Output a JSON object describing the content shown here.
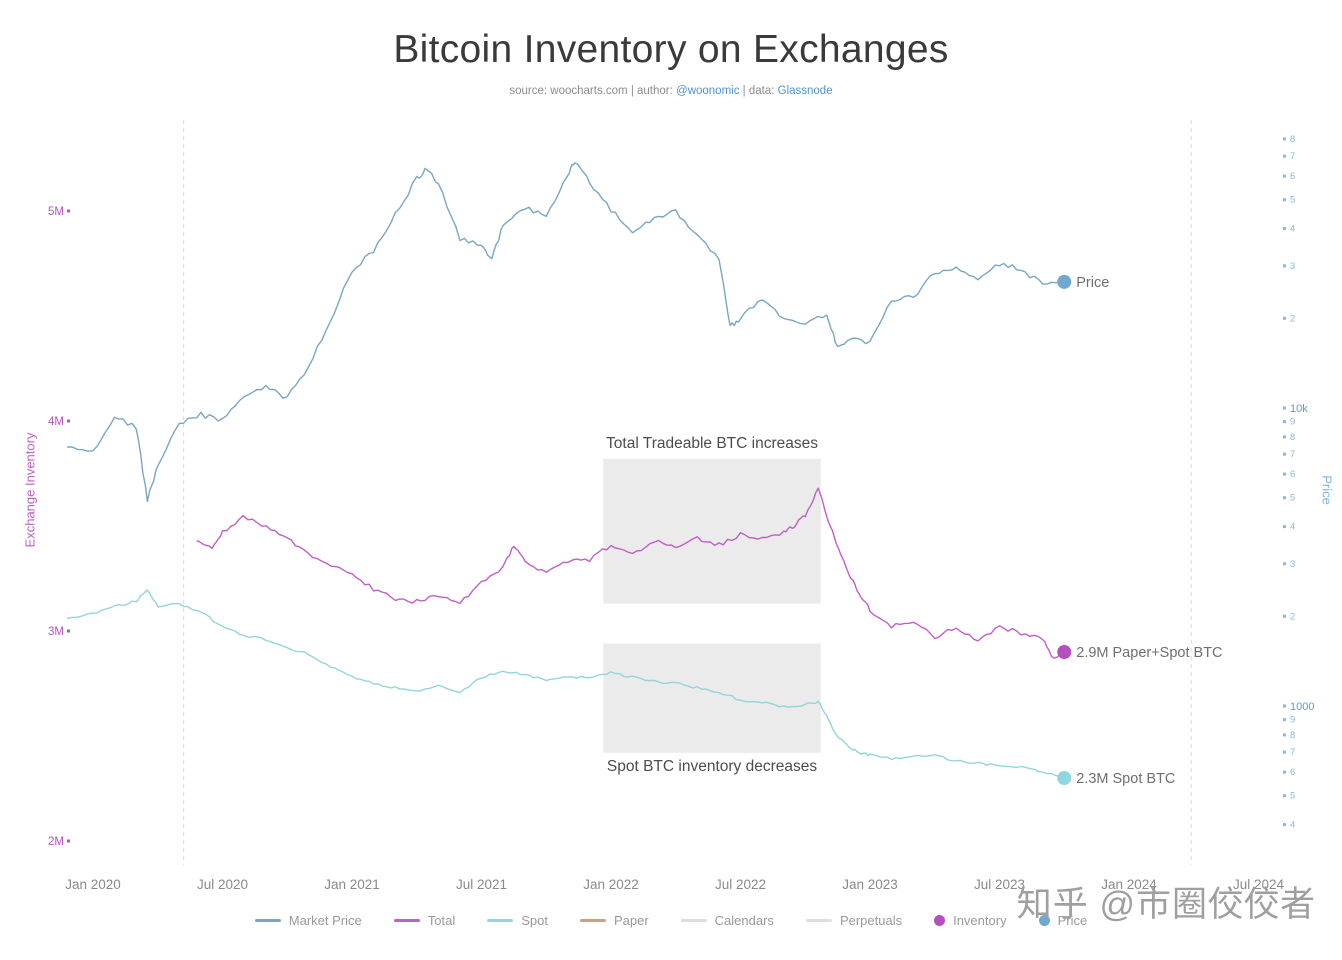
{
  "header": {
    "title": "Bitcoin Inventory on Exchanges",
    "subtitle_prefix": "source: woocharts.com | author: ",
    "author_link": "@woonomic",
    "subtitle_mid": " | data: ",
    "data_link": "Glassnode"
  },
  "watermark": "知乎 @市圈佼佼者",
  "legend": {
    "items": [
      {
        "label": "Market Price",
        "swatch": "line",
        "color": "#7aa6c2"
      },
      {
        "label": "Total",
        "swatch": "line",
        "color": "#c05fc5"
      },
      {
        "label": "Spot",
        "swatch": "line",
        "color": "#93d5dc"
      },
      {
        "label": "Paper",
        "swatch": "line",
        "color": "#c9a183"
      },
      {
        "label": "Calendars",
        "swatch": "line",
        "color": "#dedede"
      },
      {
        "label": "Perpetuals",
        "swatch": "line",
        "color": "#dedede"
      },
      {
        "label": "Inventory",
        "swatch": "dot",
        "color": "#b44fc0"
      },
      {
        "label": "Price",
        "swatch": "dot",
        "color": "#6fa8d0"
      }
    ]
  },
  "chart_data": {
    "type": "line",
    "title": "Bitcoin Inventory on Exchanges",
    "legend_position": "bottom",
    "grid": "off",
    "x_axis": {
      "ticks": [
        {
          "label": "Jan 2020",
          "t": 2020.0
        },
        {
          "label": "Jul 2020",
          "t": 2020.5
        },
        {
          "label": "Jan 2021",
          "t": 2021.0
        },
        {
          "label": "Jul 2021",
          "t": 2021.5
        },
        {
          "label": "Jan 2022",
          "t": 2022.0
        },
        {
          "label": "Jul 2022",
          "t": 2022.5
        },
        {
          "label": "Jan 2023",
          "t": 2023.0
        },
        {
          "label": "Jul 2023",
          "t": 2023.5
        },
        {
          "label": "Jan 2024",
          "t": 2024.0
        },
        {
          "label": "Jul 2024",
          "t": 2024.5
        }
      ],
      "range_t": [
        2019.89,
        2024.62
      ]
    },
    "left_axis": {
      "label": "Exchange Inventory",
      "color": "#c05fc5",
      "units": "BTC",
      "range_millions": [
        1.95,
        5.55
      ],
      "ticks": [
        {
          "label": "5M",
          "value_millions": 5
        },
        {
          "label": "4M",
          "value_millions": 4
        },
        {
          "label": "3M",
          "value_millions": 3
        },
        {
          "label": "2M",
          "value_millions": 2
        }
      ]
    },
    "right_axis": {
      "label": "Price",
      "color": "#86b3da",
      "scale": "log",
      "range_usd": [
        300,
        93000
      ],
      "ticks": [
        {
          "label": "8",
          "value": 80000,
          "major": false
        },
        {
          "label": "7",
          "value": 70000,
          "major": false
        },
        {
          "label": "6",
          "value": 60000,
          "major": false
        },
        {
          "label": "5",
          "value": 50000,
          "major": false
        },
        {
          "label": "4",
          "value": 40000,
          "major": false
        },
        {
          "label": "3",
          "value": 30000,
          "major": false
        },
        {
          "label": "2",
          "value": 20000,
          "major": false
        },
        {
          "label": "10k",
          "value": 10000,
          "major": true
        },
        {
          "label": "9",
          "value": 9000,
          "major": false
        },
        {
          "label": "8",
          "value": 8000,
          "major": false
        },
        {
          "label": "7",
          "value": 7000,
          "major": false
        },
        {
          "label": "6",
          "value": 6000,
          "major": false
        },
        {
          "label": "5",
          "value": 5000,
          "major": false
        },
        {
          "label": "4",
          "value": 4000,
          "major": false
        },
        {
          "label": "3",
          "value": 3000,
          "major": false
        },
        {
          "label": "2",
          "value": 2000,
          "major": false
        },
        {
          "label": "1000",
          "value": 1000,
          "major": true
        },
        {
          "label": "9",
          "value": 900,
          "major": false
        },
        {
          "label": "8",
          "value": 800,
          "major": false
        },
        {
          "label": "7",
          "value": 700,
          "major": false
        },
        {
          "label": "6",
          "value": 600,
          "major": false
        },
        {
          "label": "5",
          "value": 500,
          "major": false
        },
        {
          "label": "4",
          "value": 400,
          "major": false
        }
      ]
    },
    "series": [
      {
        "name": "Market Price",
        "axis": "price",
        "units": "USD",
        "color": "#7aa6c2",
        "points": [
          [
            2019.9,
            7400
          ],
          [
            2020.0,
            7200
          ],
          [
            2020.083,
            9400
          ],
          [
            2020.167,
            8600
          ],
          [
            2020.21,
            4900
          ],
          [
            2020.25,
            6400
          ],
          [
            2020.333,
            8800
          ],
          [
            2020.417,
            9500
          ],
          [
            2020.5,
            9100
          ],
          [
            2020.583,
            11000
          ],
          [
            2020.667,
            11700
          ],
          [
            2020.75,
            10800
          ],
          [
            2020.833,
            13800
          ],
          [
            2020.917,
            19700
          ],
          [
            2021.0,
            29000
          ],
          [
            2021.083,
            33500
          ],
          [
            2021.167,
            45000
          ],
          [
            2021.25,
            58800
          ],
          [
            2021.29,
            63500
          ],
          [
            2021.333,
            57000
          ],
          [
            2021.417,
            37000
          ],
          [
            2021.5,
            35000
          ],
          [
            2021.54,
            31500
          ],
          [
            2021.583,
            41000
          ],
          [
            2021.667,
            47000
          ],
          [
            2021.75,
            43800
          ],
          [
            2021.833,
            61000
          ],
          [
            2021.86,
            67500
          ],
          [
            2021.917,
            57000
          ],
          [
            2022.0,
            46200
          ],
          [
            2022.083,
            38500
          ],
          [
            2022.167,
            43200
          ],
          [
            2022.25,
            45500
          ],
          [
            2022.333,
            37600
          ],
          [
            2022.417,
            31800
          ],
          [
            2022.46,
            18800
          ],
          [
            2022.5,
            19900
          ],
          [
            2022.583,
            23300
          ],
          [
            2022.667,
            20000
          ],
          [
            2022.75,
            19400
          ],
          [
            2022.833,
            20500
          ],
          [
            2022.875,
            16000
          ],
          [
            2022.917,
            17100
          ],
          [
            2023.0,
            16500
          ],
          [
            2023.083,
            23100
          ],
          [
            2023.167,
            23500
          ],
          [
            2023.25,
            28500
          ],
          [
            2023.333,
            29200
          ],
          [
            2023.417,
            27200
          ],
          [
            2023.5,
            30500
          ],
          [
            2023.583,
            29200
          ],
          [
            2023.667,
            26000
          ],
          [
            2023.75,
            26500
          ]
        ]
      },
      {
        "name": "Total",
        "axis": "inventory",
        "units": "M BTC",
        "color": "#c05fc5",
        "points": [
          [
            2020.4,
            3.43
          ],
          [
            2020.46,
            3.4
          ],
          [
            2020.5,
            3.47
          ],
          [
            2020.58,
            3.54
          ],
          [
            2020.67,
            3.5
          ],
          [
            2020.75,
            3.44
          ],
          [
            2020.83,
            3.37
          ],
          [
            2020.92,
            3.31
          ],
          [
            2021.0,
            3.27
          ],
          [
            2021.083,
            3.2
          ],
          [
            2021.167,
            3.15
          ],
          [
            2021.25,
            3.14
          ],
          [
            2021.333,
            3.17
          ],
          [
            2021.417,
            3.13
          ],
          [
            2021.5,
            3.23
          ],
          [
            2021.583,
            3.3
          ],
          [
            2021.625,
            3.41
          ],
          [
            2021.667,
            3.33
          ],
          [
            2021.75,
            3.28
          ],
          [
            2021.833,
            3.33
          ],
          [
            2021.917,
            3.34
          ],
          [
            2022.0,
            3.41
          ],
          [
            2022.083,
            3.36
          ],
          [
            2022.167,
            3.43
          ],
          [
            2022.25,
            3.4
          ],
          [
            2022.333,
            3.44
          ],
          [
            2022.417,
            3.41
          ],
          [
            2022.5,
            3.46
          ],
          [
            2022.583,
            3.44
          ],
          [
            2022.667,
            3.47
          ],
          [
            2022.708,
            3.5
          ],
          [
            2022.75,
            3.55
          ],
          [
            2022.8,
            3.68
          ],
          [
            2022.833,
            3.55
          ],
          [
            2022.87,
            3.42
          ],
          [
            2022.917,
            3.28
          ],
          [
            2022.958,
            3.18
          ],
          [
            2023.0,
            3.1
          ],
          [
            2023.083,
            3.02
          ],
          [
            2023.167,
            3.05
          ],
          [
            2023.25,
            2.97
          ],
          [
            2023.333,
            3.02
          ],
          [
            2023.417,
            2.95
          ],
          [
            2023.5,
            3.02
          ],
          [
            2023.583,
            2.99
          ],
          [
            2023.667,
            2.96
          ],
          [
            2023.708,
            2.87
          ],
          [
            2023.75,
            2.9
          ]
        ]
      },
      {
        "name": "Spot",
        "axis": "inventory",
        "units": "M BTC",
        "color": "#93d5dc",
        "points": [
          [
            2019.9,
            3.06
          ],
          [
            2020.0,
            3.08
          ],
          [
            2020.083,
            3.12
          ],
          [
            2020.167,
            3.14
          ],
          [
            2020.21,
            3.2
          ],
          [
            2020.25,
            3.12
          ],
          [
            2020.333,
            3.13
          ],
          [
            2020.417,
            3.09
          ],
          [
            2020.5,
            3.02
          ],
          [
            2020.583,
            2.98
          ],
          [
            2020.667,
            2.96
          ],
          [
            2020.75,
            2.92
          ],
          [
            2020.833,
            2.89
          ],
          [
            2020.917,
            2.83
          ],
          [
            2021.0,
            2.78
          ],
          [
            2021.083,
            2.75
          ],
          [
            2021.167,
            2.73
          ],
          [
            2021.25,
            2.71
          ],
          [
            2021.333,
            2.74
          ],
          [
            2021.417,
            2.71
          ],
          [
            2021.5,
            2.78
          ],
          [
            2021.583,
            2.81
          ],
          [
            2021.667,
            2.79
          ],
          [
            2021.75,
            2.77
          ],
          [
            2021.833,
            2.78
          ],
          [
            2021.917,
            2.78
          ],
          [
            2022.0,
            2.8
          ],
          [
            2022.083,
            2.78
          ],
          [
            2022.167,
            2.76
          ],
          [
            2022.25,
            2.75
          ],
          [
            2022.333,
            2.73
          ],
          [
            2022.417,
            2.71
          ],
          [
            2022.5,
            2.67
          ],
          [
            2022.583,
            2.66
          ],
          [
            2022.667,
            2.64
          ],
          [
            2022.75,
            2.65
          ],
          [
            2022.8,
            2.66
          ],
          [
            2022.833,
            2.6
          ],
          [
            2022.87,
            2.5
          ],
          [
            2022.917,
            2.45
          ],
          [
            2022.958,
            2.42
          ],
          [
            2023.0,
            2.41
          ],
          [
            2023.083,
            2.39
          ],
          [
            2023.167,
            2.4
          ],
          [
            2023.25,
            2.41
          ],
          [
            2023.333,
            2.38
          ],
          [
            2023.417,
            2.37
          ],
          [
            2023.5,
            2.36
          ],
          [
            2023.583,
            2.35
          ],
          [
            2023.667,
            2.33
          ],
          [
            2023.75,
            2.3
          ]
        ]
      }
    ],
    "annotations": [
      {
        "label": "Total Tradeable BTC increases",
        "t_range": [
          2021.97,
          2022.81
        ],
        "v_range_millions": [
          3.13,
          3.82
        ],
        "label_pos": "above"
      },
      {
        "label": "Spot BTC inventory decreases",
        "t_range": [
          2021.97,
          2022.81
        ],
        "v_range_millions": [
          2.42,
          2.94
        ],
        "label_pos": "below"
      }
    ],
    "end_labels": [
      {
        "text": "Price",
        "series": "Market Price",
        "dot_color": "#6fa8d0"
      },
      {
        "text": "2.9M Paper+Spot BTC",
        "series": "Total",
        "dot_color": "#b44fc0"
      },
      {
        "text": "2.3M Spot BTC",
        "series": "Spot",
        "dot_color": "#8fd6de"
      }
    ],
    "layout": {
      "dashed_vlines_t": [
        2020.35,
        2024.24
      ]
    }
  }
}
